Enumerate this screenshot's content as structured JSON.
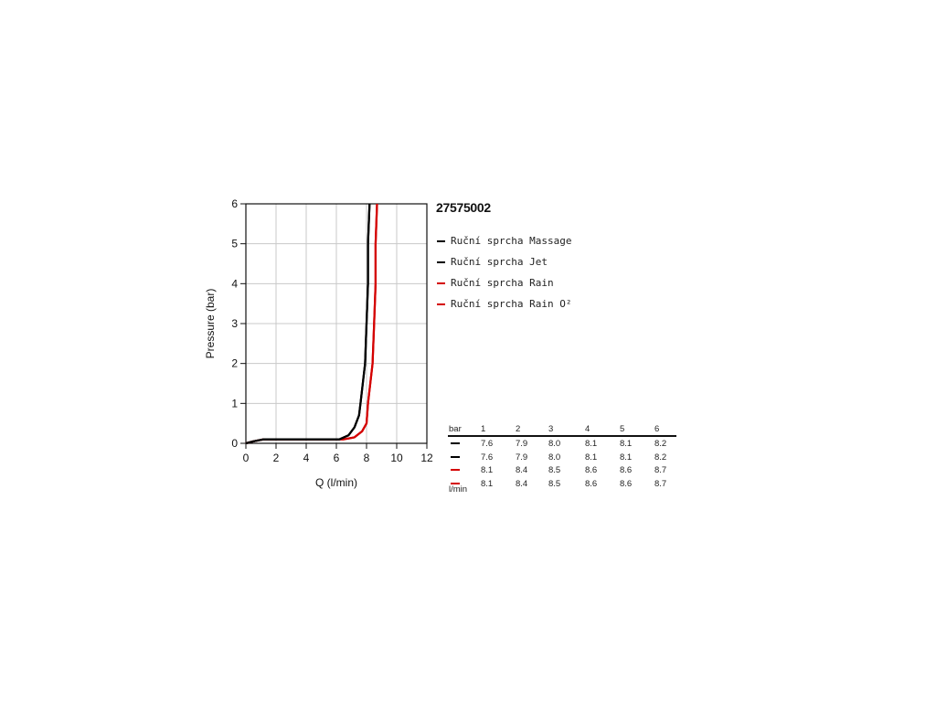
{
  "chart_data": {
    "type": "line",
    "xlabel": "Q (l/min)",
    "ylabel": "Pressure (bar)",
    "xlim": [
      0,
      12
    ],
    "ylim": [
      0,
      6
    ],
    "x_ticks": [
      "0",
      "2",
      "4",
      "6",
      "8",
      "10",
      "12"
    ],
    "y_ticks": [
      "0",
      "1",
      "2",
      "3",
      "4",
      "5",
      "6"
    ],
    "grid": true,
    "series": [
      {
        "name": "Ruční sprcha Massage",
        "color": "#000000",
        "points": [
          [
            0,
            0
          ],
          [
            0.5,
            0.05
          ],
          [
            1.2,
            0.1
          ],
          [
            3,
            0.1
          ],
          [
            6.2,
            0.1
          ],
          [
            6.8,
            0.2
          ],
          [
            7.2,
            0.4
          ],
          [
            7.5,
            0.7
          ],
          [
            7.6,
            1.0
          ],
          [
            7.9,
            2.0
          ],
          [
            8.0,
            3.0
          ],
          [
            8.1,
            4.0
          ],
          [
            8.1,
            5.0
          ],
          [
            8.2,
            6.0
          ]
        ]
      },
      {
        "name": "Ruční sprcha Jet",
        "color": "#000000",
        "points": [
          [
            0,
            0
          ],
          [
            0.5,
            0.05
          ],
          [
            1.2,
            0.1
          ],
          [
            3,
            0.1
          ],
          [
            6.2,
            0.1
          ],
          [
            6.8,
            0.2
          ],
          [
            7.2,
            0.4
          ],
          [
            7.5,
            0.7
          ],
          [
            7.6,
            1.0
          ],
          [
            7.9,
            2.0
          ],
          [
            8.0,
            3.0
          ],
          [
            8.1,
            4.0
          ],
          [
            8.1,
            5.0
          ],
          [
            8.2,
            6.0
          ]
        ]
      },
      {
        "name": "Ruční sprcha Rain",
        "color": "#d40000",
        "points": [
          [
            0,
            0
          ],
          [
            0.5,
            0.05
          ],
          [
            1.2,
            0.1
          ],
          [
            3,
            0.1
          ],
          [
            6.5,
            0.1
          ],
          [
            7.2,
            0.15
          ],
          [
            7.7,
            0.3
          ],
          [
            8.0,
            0.5
          ],
          [
            8.1,
            1.0
          ],
          [
            8.4,
            2.0
          ],
          [
            8.5,
            3.0
          ],
          [
            8.6,
            4.0
          ],
          [
            8.6,
            5.0
          ],
          [
            8.7,
            6.0
          ]
        ]
      },
      {
        "name": "Ruční sprcha Rain O²",
        "color": "#d40000",
        "points": [
          [
            0,
            0
          ],
          [
            0.5,
            0.05
          ],
          [
            1.2,
            0.1
          ],
          [
            3,
            0.1
          ],
          [
            6.5,
            0.1
          ],
          [
            7.2,
            0.15
          ],
          [
            7.7,
            0.3
          ],
          [
            8.0,
            0.5
          ],
          [
            8.1,
            1.0
          ],
          [
            8.4,
            2.0
          ],
          [
            8.5,
            3.0
          ],
          [
            8.6,
            4.0
          ],
          [
            8.6,
            5.0
          ],
          [
            8.7,
            6.0
          ]
        ]
      }
    ]
  },
  "product_code": "27575002",
  "table": {
    "header_label": "bar",
    "columns": [
      "1",
      "2",
      "3",
      "4",
      "5",
      "6"
    ],
    "rows": [
      {
        "color": "#000000",
        "values": [
          "7.6",
          "7.9",
          "8.0",
          "8.1",
          "8.1",
          "8.2"
        ]
      },
      {
        "color": "#000000",
        "values": [
          "7.6",
          "7.9",
          "8.0",
          "8.1",
          "8.1",
          "8.2"
        ]
      },
      {
        "color": "#d40000",
        "values": [
          "8.1",
          "8.4",
          "8.5",
          "8.6",
          "8.6",
          "8.7"
        ]
      },
      {
        "color": "#d40000",
        "values": [
          "8.1",
          "8.4",
          "8.5",
          "8.6",
          "8.6",
          "8.7"
        ]
      }
    ],
    "unit_label": "l/min"
  }
}
